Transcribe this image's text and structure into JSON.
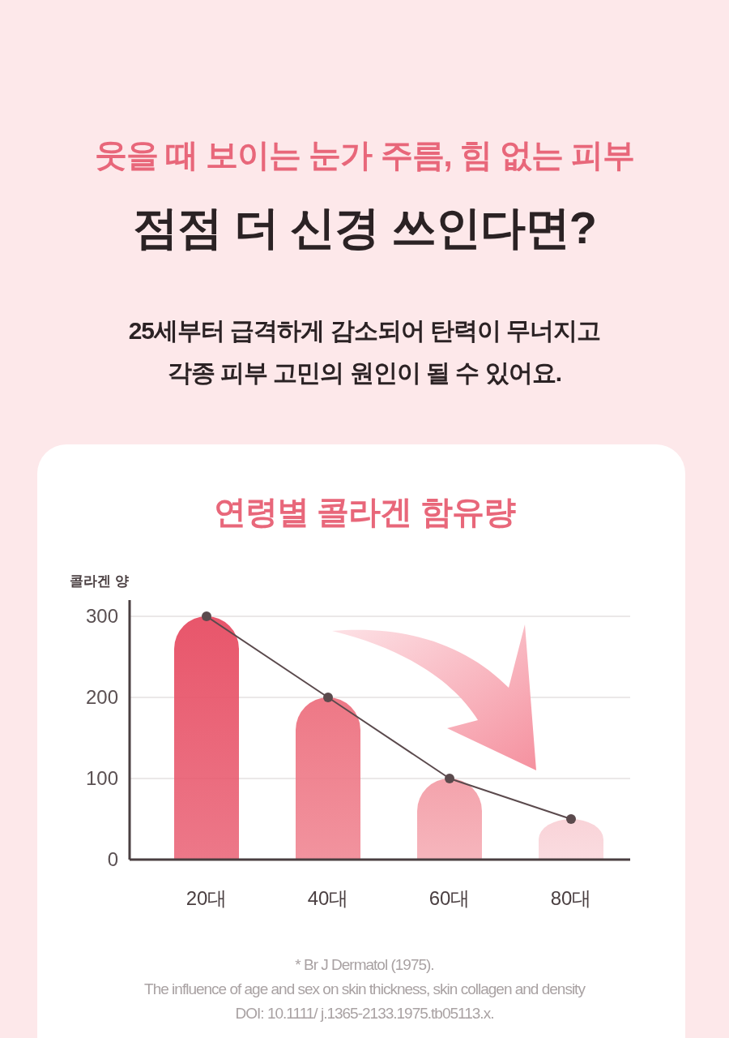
{
  "chart_data": {
    "type": "bar",
    "title": "연령별 콜라겐 함유량",
    "ylabel": "콜라겐 양",
    "categories": [
      "20대",
      "40대",
      "60대",
      "80대"
    ],
    "series": [
      {
        "colors": [
          "#e8566b",
          "#ee7886",
          "#f4a3ac",
          "#f9d3d8"
        ],
        "values": [
          300,
          200,
          100,
          50
        ]
      },
      {
        "type": "line",
        "color": "#5b4a4d",
        "values": [
          300,
          200,
          100,
          50
        ],
        "marker": "circle"
      }
    ],
    "ylim": [
      0,
      320
    ],
    "yticks": [
      0,
      100,
      200,
      300
    ],
    "grid": "y",
    "annotations": [
      "웃을 때 보이는 눈가 주름, 힘 없는 피부",
      "점점 더 신경 쓰인다면?",
      "25세부터 급격하게 감소되어 탄력이 무너지고",
      "각종 피부 고민의 원인이 될 수 있어요.",
      "* Br J Dermatol (1975).",
      "The influence of age and sex on skin thickness, skin collagen and density",
      "DOI: 10.1111/ j.1365-2133.1975.tb05113.x."
    ]
  }
}
